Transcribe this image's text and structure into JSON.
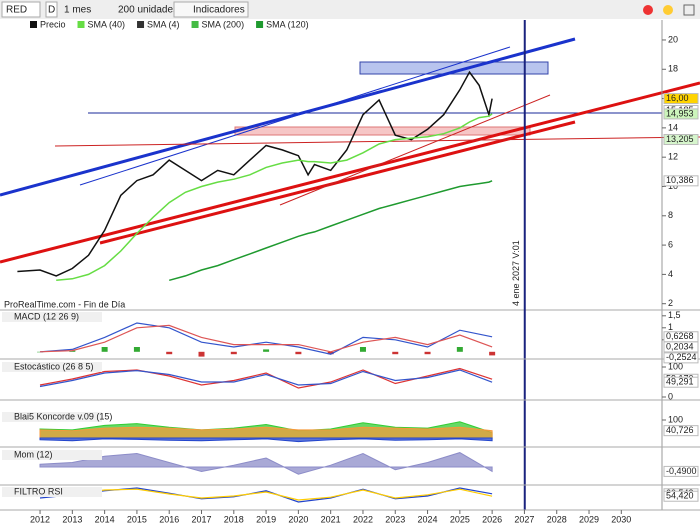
{
  "toolbar": {
    "symbol": "RED",
    "mode": "D",
    "period": "1 mes",
    "units": "200 unidades",
    "indicators": "Indicadores"
  },
  "chart_data": [
    {
      "type": "line",
      "source": "ProRealTime.com - Fin de Día",
      "cursor": {
        "x": 2027.01,
        "label": "4 ene 2027 V:01"
      },
      "x": [
        2011.3,
        2012,
        2012.5,
        2013,
        2013.5,
        2014,
        2014.5,
        2015,
        2015.5,
        2016,
        2016.5,
        2017,
        2017.5,
        2018,
        2018.5,
        2019,
        2019.5,
        2020,
        2020.3,
        2020.5,
        2021,
        2021.5,
        2022,
        2022.5,
        2023,
        2023.5,
        2024,
        2024.5,
        2025,
        2025.3,
        2025.6,
        2025.9,
        2026
      ],
      "series": [
        {
          "name": "Precio",
          "color": "#111111",
          "values": [
            4.2,
            4.3,
            3.9,
            4.4,
            5.3,
            7.0,
            9.4,
            10.4,
            10.8,
            11.8,
            11.1,
            10.4,
            11.1,
            10.8,
            11.8,
            12.8,
            12.5,
            12.1,
            10.8,
            11.5,
            11.1,
            12.5,
            14.9,
            15.9,
            13.5,
            13.2,
            13.9,
            14.9,
            16.6,
            17.8,
            16.9,
            14.9,
            16.0
          ]
        },
        {
          "name": "SMA (40)",
          "color": "#66dd44",
          "values": [
            null,
            null,
            3.6,
            3.7,
            4.0,
            4.6,
            5.6,
            6.8,
            7.9,
            8.9,
            9.6,
            10.0,
            10.3,
            10.5,
            10.8,
            11.3,
            11.6,
            11.8,
            11.7,
            11.7,
            11.6,
            11.8,
            12.3,
            12.9,
            13.2,
            13.3,
            13.4,
            13.6,
            14.0,
            14.4,
            14.7,
            14.8,
            14.953
          ]
        },
        {
          "name": "SMA (4)",
          "color": "#333333"
        },
        {
          "name": "SMA (200)",
          "color": "#44bb44"
        },
        {
          "name": "SMA (120)",
          "color": "#1f9a2f",
          "values": [
            null,
            null,
            null,
            null,
            null,
            null,
            null,
            null,
            null,
            3.6,
            3.9,
            4.3,
            4.6,
            5.0,
            5.4,
            5.8,
            6.2,
            6.6,
            6.8,
            6.9,
            7.3,
            7.7,
            8.1,
            8.5,
            8.8,
            9.1,
            9.4,
            9.7,
            10.0,
            10.1,
            10.2,
            10.3,
            10.386
          ]
        }
      ],
      "ylim": [
        1.57,
        20.68
      ],
      "yticks": [
        2,
        4,
        6,
        8,
        10,
        12,
        14,
        16,
        18,
        20
      ],
      "price_labels": [
        {
          "value": 16,
          "label": "16,00",
          "color": "#ffd400"
        },
        {
          "value": 15.185,
          "label": "15,185",
          "color": "#ffffff"
        },
        {
          "value": 14.953,
          "label": "14,953",
          "color": "#ccf5bb"
        },
        {
          "value": 13.205,
          "label": "13,205",
          "color": "#d6f5cc"
        },
        {
          "value": 10.386,
          "label": "10,386",
          "color": "#ffffff"
        }
      ]
    },
    {
      "type": "line",
      "title": "MACD (12 26 9)",
      "x": [
        2012,
        2013,
        2014,
        2015,
        2016,
        2017,
        2018,
        2019,
        2020,
        2021,
        2022,
        2023,
        2024,
        2025,
        2026
      ],
      "series": [
        {
          "color": "#33aa33",
          "style": "bar",
          "values": [
            0,
            0.05,
            0.2,
            0.2,
            -0.1,
            -0.2,
            -0.1,
            0.1,
            -0.1,
            -0.1,
            0.2,
            -0.1,
            -0.1,
            0.2,
            -0.15
          ]
        },
        {
          "color": "#3355cc",
          "values": [
            0.0,
            0.1,
            0.6,
            1.2,
            1.0,
            0.4,
            0.2,
            0.4,
            0.2,
            -0.1,
            0.6,
            0.5,
            0.2,
            0.9,
            0.6268
          ]
        },
        {
          "color": "#dd5555",
          "values": [
            0.0,
            0.05,
            0.4,
            1.0,
            1.1,
            0.6,
            0.3,
            0.3,
            0.3,
            0.0,
            0.4,
            0.6,
            0.3,
            0.7,
            0.2034
          ]
        }
      ],
      "ylim": [
        -0.3,
        1.7
      ],
      "yticks": [
        {
          "value": 1.5,
          "label": "1,5"
        },
        1,
        {
          "value": 0.5,
          "label": "0,5"
        }
      ],
      "price_labels": [
        {
          "value": 0.6268,
          "label": "0,6268",
          "color": "#ffffff"
        },
        {
          "value": 0.2034,
          "label": "0,2034",
          "color": "#ffffff"
        },
        {
          "value": -0.2524,
          "label": "-0,2524",
          "color": "#ffffff"
        }
      ]
    },
    {
      "type": "line",
      "title": "Estocástico (26 8 5)",
      "x": [
        2012,
        2013,
        2014,
        2015,
        2016,
        2017,
        2018,
        2019,
        2020,
        2021,
        2022,
        2023,
        2024,
        2025,
        2026
      ],
      "series": [
        {
          "color": "#dd3333",
          "values": [
            40,
            60,
            85,
            90,
            70,
            40,
            55,
            80,
            30,
            50,
            90,
            45,
            70,
            95,
            59.17
          ]
        },
        {
          "color": "#3355cc",
          "values": [
            35,
            55,
            80,
            88,
            75,
            50,
            50,
            75,
            40,
            45,
            85,
            55,
            65,
            90,
            49.291
          ]
        }
      ],
      "ylim": [
        -10,
        120
      ],
      "yticks": [
        100,
        0
      ],
      "price_labels": [
        {
          "value": 59.17,
          "label": "59,170",
          "color": "#ffffff"
        },
        {
          "value": 49.291,
          "label": "49,291",
          "color": "#ffffff"
        }
      ]
    },
    {
      "type": "area",
      "title": "Blai5 Koncorde v.09 (15)",
      "x": [
        2012,
        2013,
        2014,
        2015,
        2016,
        2017,
        2018,
        2019,
        2020,
        2021,
        2022,
        2023,
        2024,
        2025,
        2026
      ],
      "series": [
        {
          "color": "#33cc33",
          "values": [
            50,
            45,
            70,
            80,
            60,
            45,
            55,
            75,
            40,
            50,
            85,
            60,
            55,
            90,
            30
          ]
        },
        {
          "color": "#f59a3c",
          "values": [
            45,
            40,
            55,
            60,
            55,
            45,
            50,
            60,
            45,
            45,
            60,
            55,
            50,
            60,
            40.726
          ]
        },
        {
          "color": "#2244cc",
          "values": [
            -10,
            -15,
            -5,
            -8,
            -12,
            -15,
            -10,
            -5,
            -20,
            -10,
            -5,
            -12,
            -10,
            -5,
            -15
          ]
        }
      ],
      "ylim": [
        -50,
        150
      ],
      "yticks": [
        100
      ],
      "price_labels": [
        {
          "value": 40.726,
          "label": "40,726",
          "color": "#ffffff"
        }
      ]
    },
    {
      "type": "area",
      "title": "Mom (12)",
      "x": [
        2012,
        2013,
        2014,
        2015,
        2016,
        2017,
        2018,
        2019,
        2020,
        2021,
        2022,
        2023,
        2024,
        2025,
        2026
      ],
      "series": [
        {
          "color": "#8c8cc8",
          "values": [
            0.3,
            0.5,
            1.2,
            1.5,
            0.5,
            -0.5,
            0.2,
            1.0,
            -0.8,
            0.2,
            1.5,
            -0.3,
            0.5,
            1.6,
            -0.49
          ]
        }
      ],
      "ylim": [
        -2,
        2
      ],
      "yticks": [],
      "price_labels": [
        {
          "value": -0.49,
          "label": "-0,4900",
          "color": "#ffffff"
        }
      ]
    },
    {
      "type": "line",
      "title": "FILTRO RSI",
      "x": [
        2012,
        2013,
        2014,
        2015,
        2016,
        2017,
        2018,
        2019,
        2020,
        2021,
        2022,
        2023,
        2024,
        2025,
        2026
      ],
      "series": [
        {
          "color": "#2244cc",
          "values": [
            50,
            58,
            68,
            75,
            62,
            48,
            53,
            68,
            40,
            50,
            72,
            48,
            55,
            75,
            60.543
          ]
        },
        {
          "color": "#ffcc00",
          "values": [
            55,
            60,
            70,
            72,
            60,
            50,
            55,
            65,
            45,
            52,
            70,
            50,
            58,
            72,
            54.42
          ]
        }
      ],
      "ylim": [
        20,
        80
      ],
      "yticks": [],
      "price_labels": [
        {
          "value": 60.543,
          "label": "60,543",
          "color": "#ffffff"
        },
        {
          "value": 54.42,
          "label": "54,420",
          "color": "#ffffff"
        }
      ],
      "xlim": [
        2010.76,
        2031.26
      ],
      "xticks": [
        2012,
        2013,
        2014,
        2015,
        2016,
        2017,
        2018,
        2019,
        2020,
        2021,
        2022,
        2023,
        2024,
        2025,
        2026,
        2027,
        2028,
        2029,
        2030
      ]
    }
  ]
}
